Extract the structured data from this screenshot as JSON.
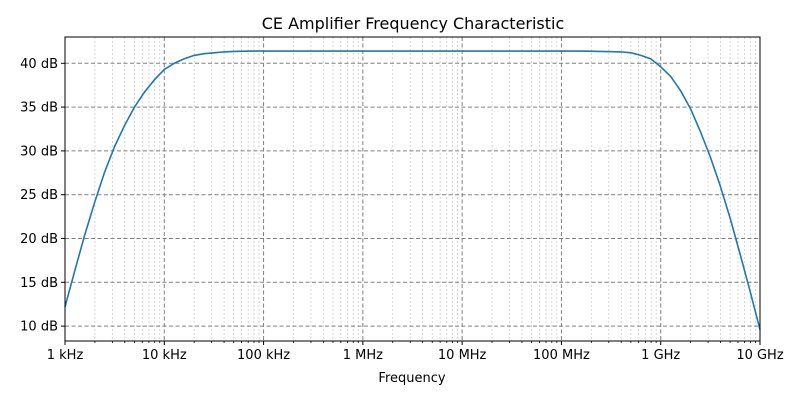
{
  "chart_data": {
    "type": "line",
    "title": "CE Amplifier Frequency Characteristic",
    "xlabel": "Frequency",
    "ylabel": "",
    "x_scale": "log",
    "xlim": [
      1000,
      10000000000
    ],
    "ylim": [
      8.3,
      43.0
    ],
    "grid": true,
    "minor_grid": true,
    "x_ticks": [
      {
        "value": 1000,
        "label": "1 kHz"
      },
      {
        "value": 10000,
        "label": "10 kHz"
      },
      {
        "value": 100000,
        "label": "100 kHz"
      },
      {
        "value": 1000000,
        "label": "1 MHz"
      },
      {
        "value": 10000000,
        "label": "10 MHz"
      },
      {
        "value": 100000000,
        "label": "100 MHz"
      },
      {
        "value": 1000000000,
        "label": "1 GHz"
      },
      {
        "value": 10000000000,
        "label": "10 GHz"
      }
    ],
    "y_ticks": [
      {
        "value": 10,
        "label": "10 dB"
      },
      {
        "value": 15,
        "label": "15 dB"
      },
      {
        "value": 20,
        "label": "20 dB"
      },
      {
        "value": 25,
        "label": "25 dB"
      },
      {
        "value": 30,
        "label": "30 dB"
      },
      {
        "value": 35,
        "label": "35 dB"
      },
      {
        "value": 40,
        "label": "40 dB"
      }
    ],
    "series": [
      {
        "color": "#1f77b4",
        "x": [
          1000,
          1260,
          1580,
          2000,
          2510,
          3160,
          3980,
          5010,
          6310,
          7940,
          10000,
          12600,
          15800,
          20000,
          25100,
          31600,
          39800,
          50100,
          63100,
          79400,
          100000,
          158000,
          251000,
          398000,
          631000,
          1000000,
          10000000,
          100000000,
          158000000,
          251000000,
          398000000,
          501000000,
          631000000,
          794000000,
          1000000000,
          1260000000,
          1580000000,
          2000000000,
          2510000000,
          3160000000,
          3980000000,
          5010000000,
          6310000000,
          7940000000,
          10000000000
        ],
        "y": [
          12.2,
          16.4,
          20.4,
          24.2,
          27.6,
          30.5,
          32.9,
          35.0,
          36.7,
          38.1,
          39.3,
          40.0,
          40.5,
          40.9,
          41.1,
          41.2,
          41.3,
          41.35,
          41.38,
          41.4,
          41.4,
          41.4,
          41.4,
          41.4,
          41.4,
          41.4,
          41.4,
          41.4,
          41.4,
          41.35,
          41.3,
          41.2,
          40.9,
          40.5,
          39.6,
          38.5,
          36.9,
          34.8,
          32.2,
          29.3,
          26.0,
          22.3,
          18.2,
          14.0,
          9.6
        ]
      }
    ]
  }
}
